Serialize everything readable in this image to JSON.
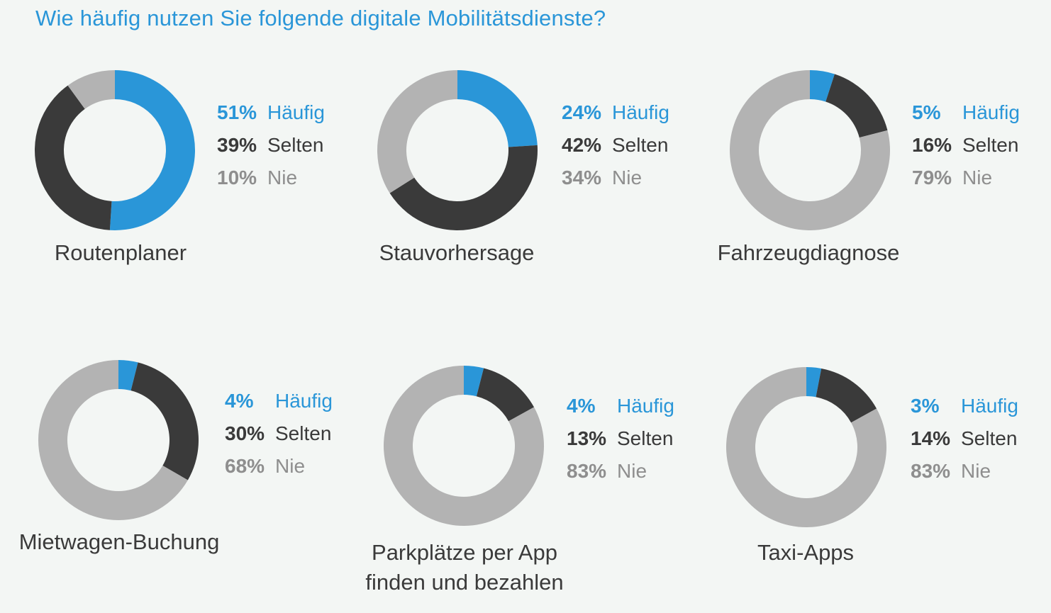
{
  "page": {
    "title": "Wie häufig nutzen Sie folgende digitale Mobilitätsdienste?"
  },
  "colors": {
    "haeufig": "#2a96d8",
    "selten": "#3a3a3a",
    "nie": "#b3b3b3",
    "background": "#f3f6f4"
  },
  "legend_labels": [
    "Häufig",
    "Selten",
    "Nie"
  ],
  "chart_data": [
    {
      "type": "pie",
      "title": "Routenplaner",
      "categories": [
        "Häufig",
        "Selten",
        "Nie"
      ],
      "values": [
        51,
        39,
        10
      ],
      "value_labels": [
        "51%",
        "39%",
        "10%"
      ]
    },
    {
      "type": "pie",
      "title": "Stauvorhersage",
      "categories": [
        "Häufig",
        "Selten",
        "Nie"
      ],
      "values": [
        24,
        42,
        34
      ],
      "value_labels": [
        "24%",
        "42%",
        "34%"
      ]
    },
    {
      "type": "pie",
      "title": "Fahrzeugdiagnose",
      "categories": [
        "Häufig",
        "Selten",
        "Nie"
      ],
      "values": [
        5,
        16,
        79
      ],
      "value_labels": [
        "5%",
        "16%",
        "79%"
      ]
    },
    {
      "type": "pie",
      "title": "Mietwagen-Buchung",
      "categories": [
        "Häufig",
        "Selten",
        "Nie"
      ],
      "values": [
        4,
        30,
        68
      ],
      "value_labels": [
        "4%",
        "30%",
        "68%"
      ]
    },
    {
      "type": "pie",
      "title": "Parkplätze per App\nfinden und bezahlen",
      "categories": [
        "Häufig",
        "Selten",
        "Nie"
      ],
      "values": [
        4,
        13,
        83
      ],
      "value_labels": [
        "4%",
        "13%",
        "83%"
      ]
    },
    {
      "type": "pie",
      "title": "Taxi-Apps",
      "categories": [
        "Häufig",
        "Selten",
        "Nie"
      ],
      "values": [
        3,
        14,
        83
      ],
      "value_labels": [
        "3%",
        "14%",
        "83%"
      ]
    }
  ]
}
